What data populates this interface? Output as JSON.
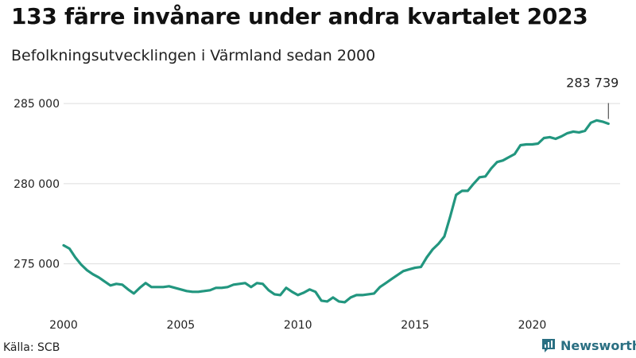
{
  "title": "133 färre invånare under andra kvartalet 2023",
  "subtitle": "Befolkningsutvecklingen i Värmland sedan 2000",
  "source": "Källa: SCB",
  "brand": {
    "name": "Newsworthy",
    "color": "#2a6f82",
    "icon": "bar-chart-logo-icon"
  },
  "chart_data": {
    "type": "line",
    "title": "133 färre invånare under andra kvartalet 2023",
    "subtitle": "Befolkningsutvecklingen i Värmland sedan 2000",
    "xlabel": "",
    "ylabel": "",
    "xlim": [
      2000,
      2023.75
    ],
    "ylim": [
      272200,
      286000
    ],
    "grid": true,
    "line_color": "#22967f",
    "x_ticks": [
      {
        "value": 2000,
        "label": "2000"
      },
      {
        "value": 2005,
        "label": "2005"
      },
      {
        "value": 2010,
        "label": "2010"
      },
      {
        "value": 2015,
        "label": "2015"
      },
      {
        "value": 2020,
        "label": "2020"
      }
    ],
    "y_ticks": [
      {
        "value": 275000,
        "label": "275 000"
      },
      {
        "value": 280000,
        "label": "280 000"
      },
      {
        "value": 285000,
        "label": "285 000"
      }
    ],
    "annotation": {
      "x": 2023.25,
      "y": 283739,
      "label": "283 739"
    },
    "series": [
      {
        "x": [
          2000,
          2000.25,
          2000.5,
          2000.75,
          2001,
          2001.25,
          2001.5,
          2001.75,
          2002,
          2002.25,
          2002.5,
          2002.75,
          2003,
          2003.25,
          2003.5,
          2003.75,
          2004,
          2004.25,
          2004.5,
          2004.75,
          2005,
          2005.25,
          2005.5,
          2005.75,
          2006,
          2006.25,
          2006.5,
          2006.75,
          2007,
          2007.25,
          2007.5,
          2007.75,
          2008,
          2008.25,
          2008.5,
          2008.75,
          2009,
          2009.25,
          2009.5,
          2009.75,
          2010,
          2010.25,
          2010.5,
          2010.75,
          2011,
          2011.25,
          2011.5,
          2011.75,
          2012,
          2012.25,
          2012.5,
          2012.75,
          2013,
          2013.25,
          2013.5,
          2013.75,
          2014,
          2014.25,
          2014.5,
          2014.75,
          2015,
          2015.25,
          2015.5,
          2015.75,
          2016,
          2016.25,
          2016.5,
          2016.75,
          2017,
          2017.25,
          2017.5,
          2017.75,
          2018,
          2018.25,
          2018.5,
          2018.75,
          2019,
          2019.25,
          2019.5,
          2019.75,
          2020,
          2020.25,
          2020.5,
          2020.75,
          2021,
          2021.25,
          2021.5,
          2021.75,
          2022,
          2022.25,
          2022.5,
          2022.75,
          2023,
          2023.25
        ],
        "y": [
          276150,
          275950,
          275400,
          274950,
          274600,
          274350,
          274150,
          273900,
          273650,
          273750,
          273700,
          273400,
          273150,
          273500,
          273800,
          273550,
          273550,
          273550,
          273600,
          273500,
          273400,
          273300,
          273250,
          273250,
          273300,
          273350,
          273500,
          273500,
          273550,
          273700,
          273750,
          273800,
          273550,
          273800,
          273750,
          273350,
          273100,
          273050,
          273500,
          273250,
          273050,
          273200,
          273400,
          273250,
          272700,
          272650,
          272900,
          272650,
          272600,
          272900,
          273050,
          273050,
          273100,
          273150,
          273550,
          273800,
          274050,
          274300,
          274550,
          274650,
          274750,
          274800,
          275400,
          275900,
          276250,
          276700,
          277950,
          279300,
          279550,
          279550,
          280000,
          280400,
          280450,
          280950,
          281350,
          281450,
          281650,
          281850,
          282400,
          282450,
          282450,
          282500,
          282850,
          282900,
          282800,
          282950,
          283150,
          283250,
          283200,
          283300,
          283800,
          283950,
          283872,
          283739
        ]
      }
    ]
  }
}
